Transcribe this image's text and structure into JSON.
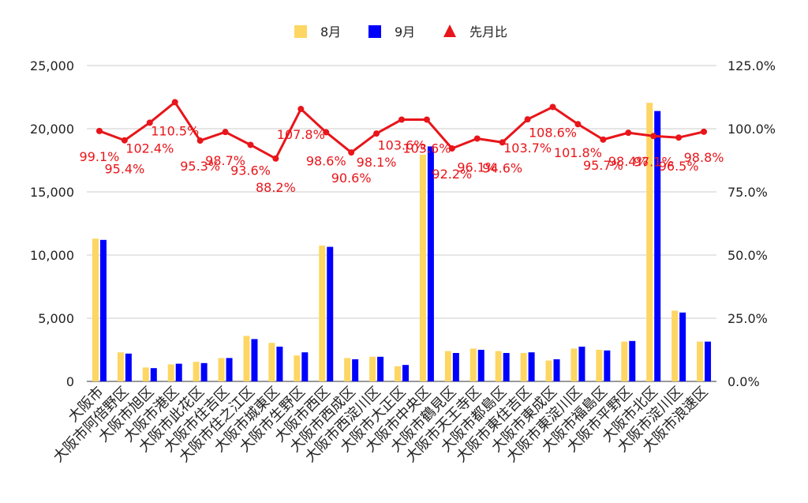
{
  "chart_data": {
    "type": "bar",
    "categories": [
      "大阪市",
      "大阪市阿倍野区",
      "大阪市旭区",
      "大阪市港区",
      "大阪市此花区",
      "大阪市住吉区",
      "大阪市住之江区",
      "大阪市城東区",
      "大阪市生野区",
      "大阪市西区",
      "大阪市西成区",
      "大阪市西淀川区",
      "大阪市大正区",
      "大阪市中央区",
      "大阪市鶴見区",
      "大阪市天王寺区",
      "大阪市都島区",
      "大阪市東住吉区",
      "大阪市東成区",
      "大阪市東淀川区",
      "大阪市福島区",
      "大阪市平野区",
      "大阪市北区",
      "大阪市淀川区",
      "大阪市浪速区"
    ],
    "series": [
      {
        "name": "8月",
        "type": "bar",
        "axis": "left",
        "color": "#fdd663",
        "values": [
          11300,
          2300,
          1100,
          1350,
          1550,
          1850,
          3600,
          3050,
          2050,
          10750,
          1850,
          1950,
          1200,
          17950,
          2400,
          2600,
          2400,
          2250,
          1650,
          2600,
          2500,
          3150,
          22050,
          5600,
          3150
        ]
      },
      {
        "name": "9月",
        "type": "bar",
        "axis": "left",
        "color": "#0000ff",
        "values": [
          11200,
          2200,
          1050,
          1400,
          1450,
          1850,
          3350,
          2750,
          2300,
          10650,
          1750,
          1950,
          1300,
          18600,
          2250,
          2500,
          2250,
          2300,
          1750,
          2750,
          2450,
          3200,
          21400,
          5450,
          3150
        ]
      },
      {
        "name": "先月比",
        "type": "line",
        "axis": "right",
        "color": "#e8151a",
        "values": [
          99.1,
          95.4,
          102.4,
          110.5,
          95.3,
          98.7,
          93.6,
          88.2,
          107.8,
          98.6,
          90.6,
          98.1,
          103.6,
          103.6,
          92.2,
          96.1,
          94.6,
          103.7,
          108.6,
          101.8,
          95.7,
          98.4,
          97.1,
          96.5,
          98.8
        ],
        "labels": [
          "99.1%",
          "95.4%",
          "102.4%",
          "110.5%",
          "95.3%",
          "98.7%",
          "93.6%",
          "88.2%",
          "107.8%",
          "98.6%",
          "90.6%",
          "98.1%",
          "103.6%",
          "103.6%",
          "92.2%",
          "96.1%",
          "94.6%",
          "103.7%",
          "108.6%",
          "101.8%",
          "95.7%",
          "98.4%",
          "97.1%",
          "96.5%",
          "98.8%"
        ]
      }
    ],
    "ylim_left": [
      0,
      25000
    ],
    "ylim_right": [
      0,
      125
    ],
    "yticks_left": [
      "0",
      "5,000",
      "10,000",
      "15,000",
      "20,000",
      "25,000"
    ],
    "yticks_right": [
      "0.0%",
      "25.0%",
      "50.0%",
      "75.0%",
      "100.0%",
      "125.0%"
    ],
    "legend": [
      "8月",
      "9月",
      "先月比"
    ],
    "legend_position": "top",
    "grid": true
  }
}
